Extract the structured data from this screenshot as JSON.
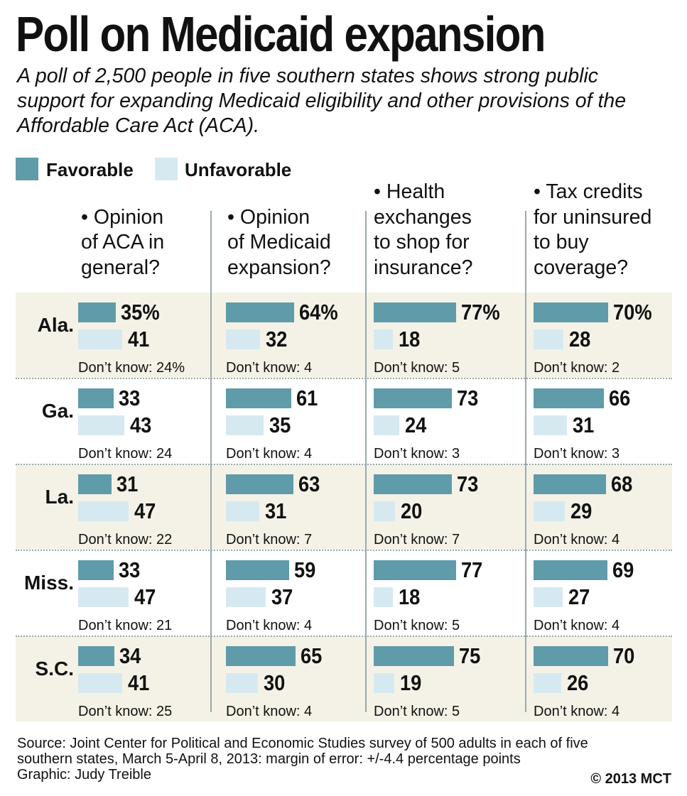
{
  "header": {
    "title": "Poll on Medicaid expansion",
    "subtitle": "A poll of 2,500 people in five southern states shows strong public support for expanding Medicaid eligibility and other provisions of the Affordable Care Act (ACA)."
  },
  "legend": {
    "favorable": "Favorable",
    "unfavorable": "Unfavorable"
  },
  "colors": {
    "favorable": "#5f9ba8",
    "unfavorable": "#d6e9f1",
    "band": "#f4f2e6",
    "separator": "#9aa9ad"
  },
  "footer": {
    "source_line1": "Source: Joint Center for Political and Economic Studies survey of 500 adults in each of five",
    "source_line2": "southern states, March 5-April 8, 2013: margin of error: +/-4.4 percentage points",
    "credit": "Graphic: Judy Treible",
    "copyright": "© 2013 MCT"
  },
  "chart_data": {
    "type": "bar",
    "title": "Poll on Medicaid expansion",
    "series_names": [
      "Favorable",
      "Unfavorable"
    ],
    "dont_know_label": "Don’t know:",
    "questions": [
      {
        "lines": [
          "• Opinion",
          "of ACA in",
          "general?"
        ]
      },
      {
        "lines": [
          "• Opinion",
          "of Medicaid",
          "expansion?"
        ]
      },
      {
        "lines": [
          "• Health",
          "exchanges",
          "to shop for",
          "insurance?"
        ]
      },
      {
        "lines": [
          "• Tax credits",
          "for uninsured",
          "to buy",
          "coverage?"
        ]
      }
    ],
    "states": [
      {
        "name": "Ala.",
        "favorable": [
          35,
          64,
          77,
          70
        ],
        "unfavorable": [
          41,
          32,
          18,
          28
        ],
        "dont_know": [
          24,
          4,
          5,
          2
        ],
        "fav_labels": [
          "35%",
          "64%",
          "77%",
          "70%"
        ],
        "unf_labels": [
          "41",
          "32",
          "18",
          "28"
        ],
        "dk_labels": [
          "24%",
          "4",
          "5",
          "2"
        ]
      },
      {
        "name": "Ga.",
        "favorable": [
          33,
          61,
          73,
          66
        ],
        "unfavorable": [
          43,
          35,
          24,
          31
        ],
        "dont_know": [
          24,
          4,
          3,
          3
        ],
        "fav_labels": [
          "33",
          "61",
          "73",
          "66"
        ],
        "unf_labels": [
          "43",
          "35",
          "24",
          "31"
        ],
        "dk_labels": [
          "24",
          "4",
          "3",
          "3"
        ]
      },
      {
        "name": "La.",
        "favorable": [
          31,
          63,
          73,
          68
        ],
        "unfavorable": [
          47,
          31,
          20,
          29
        ],
        "dont_know": [
          22,
          7,
          7,
          4
        ],
        "fav_labels": [
          "31",
          "63",
          "73",
          "68"
        ],
        "unf_labels": [
          "47",
          "31",
          "20",
          "29"
        ],
        "dk_labels": [
          "22",
          "7",
          "7",
          "4"
        ]
      },
      {
        "name": "Miss.",
        "favorable": [
          33,
          59,
          77,
          69
        ],
        "unfavorable": [
          47,
          37,
          18,
          27
        ],
        "dont_know": [
          21,
          4,
          5,
          4
        ],
        "fav_labels": [
          "33",
          "59",
          "77",
          "69"
        ],
        "unf_labels": [
          "47",
          "37",
          "18",
          "27"
        ],
        "dk_labels": [
          "21",
          "4",
          "5",
          "4"
        ]
      },
      {
        "name": "S.C.",
        "favorable": [
          34,
          65,
          75,
          70
        ],
        "unfavorable": [
          41,
          30,
          19,
          26
        ],
        "dont_know": [
          25,
          4,
          5,
          4
        ],
        "fav_labels": [
          "34",
          "65",
          "75",
          "70"
        ],
        "unf_labels": [
          "41",
          "30",
          "19",
          "26"
        ],
        "dk_labels": [
          "25",
          "4",
          "5",
          "4"
        ]
      }
    ]
  }
}
